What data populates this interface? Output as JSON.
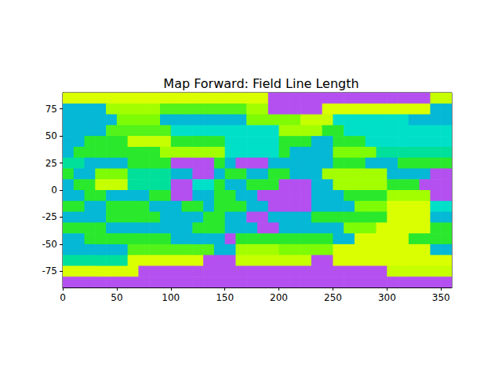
{
  "chart_data": {
    "type": "heatmap",
    "title": "Map Forward: Field Line Length",
    "x_bins": [
      0,
      10,
      20,
      30,
      40,
      50,
      60,
      70,
      80,
      90,
      100,
      110,
      120,
      130,
      140,
      150,
      160,
      170,
      180,
      190,
      200,
      210,
      220,
      230,
      240,
      250,
      260,
      270,
      280,
      290,
      300,
      310,
      320,
      330,
      340,
      350,
      360
    ],
    "y_bins": [
      90,
      80,
      70,
      60,
      50,
      40,
      30,
      20,
      10,
      0,
      -10,
      -20,
      -30,
      -40,
      -50,
      -60,
      -70,
      -80,
      -90
    ],
    "cells": [
      [
        0.22,
        0.22,
        0.22,
        0.22,
        0.22,
        0.22,
        0.22,
        0.22,
        0.22,
        0.22,
        0.22,
        0.22,
        0.22,
        0.22,
        0.22,
        0.22,
        0.22,
        0.22,
        0.22,
        1,
        1,
        1,
        1,
        1,
        1,
        1,
        1,
        1,
        1,
        1,
        1,
        1,
        1,
        1,
        0.25,
        0.25
      ],
      [
        0.7,
        0.7,
        0.7,
        0.7,
        0.3,
        0.3,
        0.3,
        0.3,
        0.3,
        0.4,
        0.4,
        0.4,
        0.4,
        0.4,
        0.4,
        0.4,
        0.4,
        0.3,
        0.3,
        1,
        1,
        1,
        1,
        1,
        0.22,
        0.22,
        0.22,
        0.22,
        0.22,
        0.22,
        0.22,
        0.22,
        0.22,
        0.22,
        0.7,
        0.7
      ],
      [
        0.7,
        0.7,
        0.7,
        0.7,
        0.7,
        0.35,
        0.35,
        0.35,
        0.35,
        0.7,
        0.7,
        0.7,
        0.7,
        0.7,
        0.7,
        0.7,
        0.7,
        0.35,
        0.35,
        0.35,
        0.35,
        0.35,
        0.25,
        0.25,
        0.25,
        0.65,
        0.65,
        0.65,
        0.65,
        0.65,
        0.65,
        0.65,
        0.7,
        0.7,
        0.7,
        0.7
      ],
      [
        0.7,
        0.7,
        0.7,
        0.7,
        0.4,
        0.4,
        0.4,
        0.4,
        0.4,
        0.4,
        0.65,
        0.65,
        0.65,
        0.65,
        0.65,
        0.65,
        0.65,
        0.65,
        0.65,
        0.65,
        0.3,
        0.3,
        0.3,
        0.3,
        0.45,
        0.45,
        0.65,
        0.65,
        0.65,
        0.65,
        0.65,
        0.65,
        0.65,
        0.65,
        0.65,
        0.65
      ],
      [
        0.7,
        0.7,
        0.45,
        0.45,
        0.45,
        0.45,
        0.25,
        0.25,
        0.25,
        0.25,
        0.45,
        0.45,
        0.45,
        0.45,
        0.45,
        0.65,
        0.65,
        0.65,
        0.65,
        0.65,
        0.45,
        0.45,
        0.45,
        0.7,
        0.7,
        0.45,
        0.45,
        0.45,
        0.65,
        0.65,
        0.65,
        0.65,
        0.65,
        0.65,
        0.65,
        0.65
      ],
      [
        0.7,
        0.45,
        0.45,
        0.45,
        0.45,
        0.45,
        0.45,
        0.45,
        0.45,
        0.3,
        0.3,
        0.3,
        0.3,
        0.3,
        0.3,
        0.65,
        0.65,
        0.65,
        0.65,
        0.65,
        0.45,
        0.7,
        0.7,
        0.7,
        0.7,
        0.35,
        0.35,
        0.35,
        0.35,
        0.6,
        0.6,
        0.6,
        0.6,
        0.6,
        0.6,
        0.6
      ],
      [
        0.6,
        0.6,
        0.7,
        0.7,
        0.7,
        0.7,
        0.45,
        0.45,
        0.45,
        0.45,
        1,
        1,
        1,
        1,
        0.45,
        0.7,
        1,
        1,
        1,
        0.7,
        0.7,
        0.7,
        0.7,
        0.7,
        0.7,
        0.45,
        0.45,
        0.45,
        0.7,
        0.7,
        0.7,
        0.45,
        0.45,
        0.45,
        0.45,
        0.45
      ],
      [
        0.45,
        0.7,
        0.7,
        0.35,
        0.35,
        0.35,
        0.6,
        0.6,
        0.6,
        0.6,
        0.7,
        0.7,
        1,
        1,
        0.7,
        0.45,
        0.45,
        0.7,
        0.7,
        0.45,
        0.45,
        0.7,
        0.7,
        0.7,
        0.3,
        0.3,
        0.3,
        0.3,
        0.3,
        0.3,
        0.7,
        0.7,
        0.7,
        0.7,
        1,
        1
      ],
      [
        0.7,
        0.45,
        0.45,
        0.25,
        0.25,
        0.25,
        0.6,
        0.6,
        0.6,
        0.6,
        1,
        1,
        0.65,
        0.65,
        0.45,
        0.7,
        0.7,
        0.45,
        0.45,
        0.45,
        1,
        1,
        1,
        0.7,
        0.7,
        0.3,
        0.3,
        0.3,
        0.3,
        0.3,
        0.45,
        0.45,
        0.45,
        1,
        1,
        1
      ],
      [
        0.7,
        0.7,
        0.45,
        0.45,
        0.7,
        0.7,
        0.7,
        0.7,
        0.45,
        0.45,
        1,
        1,
        0.7,
        0.7,
        0.45,
        0.45,
        0.7,
        0.7,
        1,
        1,
        1,
        1,
        1,
        0.7,
        0.7,
        0.7,
        0.45,
        0.45,
        0.45,
        0.45,
        0.3,
        0.3,
        0.3,
        0.3,
        1,
        1
      ],
      [
        0.45,
        0.45,
        0.7,
        0.7,
        0.45,
        0.45,
        0.45,
        0.45,
        0.7,
        0.7,
        0.7,
        0.45,
        0.45,
        0.7,
        0.45,
        0.45,
        0.45,
        0.7,
        0.7,
        1,
        1,
        1,
        1,
        0.7,
        0.7,
        0.7,
        0.7,
        0.35,
        0.35,
        0.35,
        0.22,
        0.22,
        0.22,
        0.22,
        0.65,
        0.65
      ],
      [
        0.7,
        0.7,
        0.7,
        0.7,
        0.45,
        0.45,
        0.45,
        0.45,
        0.45,
        0.7,
        0.7,
        0.7,
        0.7,
        0.45,
        0.45,
        0.7,
        0.7,
        1,
        1,
        0.7,
        0.7,
        0.7,
        0.7,
        0.45,
        0.45,
        0.45,
        0.45,
        0.45,
        0.45,
        0.45,
        0.22,
        0.22,
        0.22,
        0.22,
        0.7,
        0.7
      ],
      [
        0.45,
        0.45,
        0.45,
        0.45,
        0.7,
        0.7,
        0.7,
        0.7,
        0.7,
        0.7,
        0.7,
        0.7,
        0.45,
        0.45,
        0.45,
        0.7,
        0.7,
        0.7,
        1,
        1,
        0.7,
        0.7,
        0.7,
        0.7,
        0.7,
        0.7,
        0.35,
        0.35,
        0.35,
        0.22,
        0.22,
        0.22,
        0.22,
        0.22,
        0.45,
        0.45
      ],
      [
        0.7,
        0.7,
        0.45,
        0.45,
        0.45,
        0.45,
        0.45,
        0.45,
        0.45,
        0.45,
        0.7,
        0.7,
        0.7,
        0.7,
        0.7,
        1,
        0.45,
        0.45,
        0.45,
        0.45,
        0.45,
        0.45,
        0.45,
        0.45,
        0.45,
        0.7,
        0.7,
        0.22,
        0.22,
        0.22,
        0.22,
        0.22,
        0.45,
        0.45,
        0.45,
        0.45
      ],
      [
        0.7,
        0.7,
        0.7,
        0.7,
        0.7,
        0.7,
        0.4,
        0.4,
        0.4,
        0.4,
        0.4,
        0.4,
        0.4,
        0.4,
        0.7,
        0.7,
        0.3,
        0.3,
        0.3,
        0.3,
        0.35,
        0.35,
        0.35,
        0.35,
        0.35,
        0.22,
        0.22,
        0.22,
        0.22,
        0.22,
        0.22,
        0.22,
        0.22,
        0.22,
        0.7,
        0.7
      ],
      [
        0.6,
        0.6,
        0.6,
        0.6,
        0.6,
        0.6,
        0.22,
        0.22,
        0.22,
        0.22,
        0.22,
        0.22,
        0.22,
        1,
        1,
        1,
        0.25,
        0.25,
        0.25,
        0.25,
        0.25,
        0.25,
        0.25,
        1,
        1,
        0.22,
        0.22,
        0.22,
        0.22,
        0.22,
        0.22,
        0.22,
        0.22,
        0.22,
        0.22,
        0.22
      ],
      [
        0.22,
        0.22,
        0.22,
        0.22,
        0.22,
        0.22,
        0.22,
        1,
        1,
        1,
        1,
        1,
        1,
        1,
        1,
        1,
        1,
        1,
        1,
        1,
        1,
        1,
        1,
        1,
        1,
        1,
        1,
        1,
        1,
        1,
        0.25,
        0.25,
        0.25,
        0.25,
        0.25,
        0.25
      ],
      [
        1,
        1,
        1,
        1,
        1,
        1,
        1,
        1,
        1,
        1,
        1,
        1,
        1,
        1,
        1,
        1,
        1,
        1,
        1,
        1,
        1,
        1,
        1,
        1,
        1,
        1,
        1,
        1,
        1,
        1,
        1,
        1,
        1,
        1,
        1,
        1
      ]
    ],
    "zlim": [
      0,
      1
    ],
    "xlim": [
      0,
      360
    ],
    "ylim": [
      -90,
      90
    ],
    "xticks": [
      0,
      50,
      100,
      150,
      200,
      250,
      300,
      350
    ],
    "yticks": [
      -75,
      -50,
      -25,
      0,
      25,
      50,
      75
    ],
    "grid": false
  }
}
